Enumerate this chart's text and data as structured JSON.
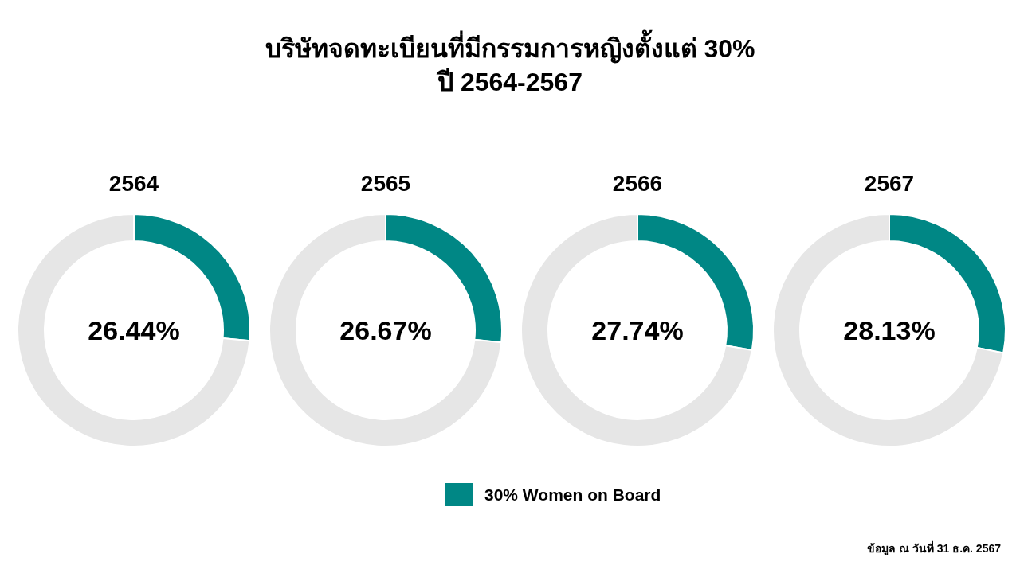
{
  "chart_data": [
    {
      "type": "other",
      "title": "บริษัทจดทะเบียนที่มีกรรมการหญิงตั้งแต่ 30%",
      "subtitle": "ปี 2564-2567",
      "annotations": [
        "ข้อมูล ณ วันที่ 31 ธ.ค. 2567"
      ]
    },
    {
      "type": "donut",
      "title": "2564",
      "categories": [
        "30% Women on Board",
        null
      ],
      "values": [
        26.44,
        73.56
      ],
      "colors": [
        "#008785",
        "#e6e6e6"
      ],
      "annotations": [
        "26.44%"
      ],
      "legend": "bottom"
    },
    {
      "type": "donut",
      "title": "2565",
      "categories": [
        null,
        null
      ],
      "values": [
        26.67,
        73.33
      ],
      "colors": [
        "#008785",
        "#e6e6e6"
      ],
      "annotations": [
        "26.67%"
      ]
    },
    {
      "type": "donut",
      "title": "2566",
      "categories": [
        null,
        null
      ],
      "values": [
        27.74,
        72.26
      ],
      "colors": [
        "#008785",
        "#e6e6e6"
      ],
      "annotations": [
        "27.74%"
      ]
    },
    {
      "type": "donut",
      "title": "2567",
      "categories": [
        null,
        null
      ],
      "values": [
        28.13,
        71.87
      ],
      "colors": [
        "#008785",
        "#e6e6e6"
      ],
      "annotations": [
        "28.13%"
      ]
    }
  ]
}
